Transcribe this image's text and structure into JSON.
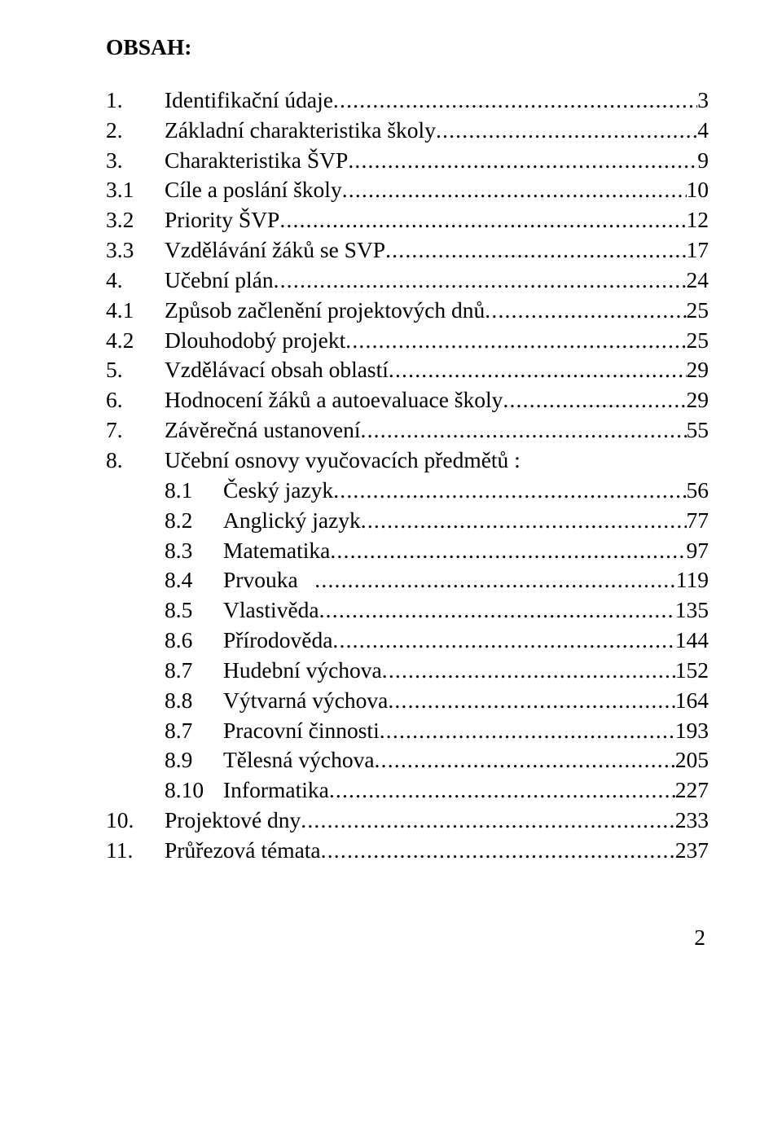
{
  "title": "OBSAH:",
  "footer_page": "2",
  "entries": [
    {
      "num": "1.",
      "label": "Identifikační údaje",
      "page": "3",
      "indent": 0,
      "numClass": "num-top"
    },
    {
      "num": "2.",
      "label": "Základní charakteristika školy",
      "page": "4",
      "indent": 0,
      "numClass": "num-top"
    },
    {
      "num": "3.",
      "label": "Charakteristika ŠVP",
      "page": "9",
      "indent": 0,
      "numClass": "num-top"
    },
    {
      "num": "3.1",
      "label": "Cíle a poslání školy",
      "page": "10",
      "indent": 0,
      "numClass": "num-sub"
    },
    {
      "num": "3.2",
      "label": "Priority ŠVP",
      "page": "12",
      "indent": 0,
      "numClass": "num-sub"
    },
    {
      "num": "3.3",
      "label": "Vzdělávání žáků se SVP",
      "page": "17",
      "indent": 0,
      "numClass": "num-sub"
    },
    {
      "num": "4.",
      "label": "Učební plán",
      "page": "24",
      "indent": 0,
      "numClass": "num-top"
    },
    {
      "num": "4.1",
      "label": "Způsob začlenění projektových dnů",
      "page": "25",
      "indent": 0,
      "numClass": "num-sub"
    },
    {
      "num": "4.2",
      "label": "Dlouhodobý projekt",
      "page": "25",
      "indent": 0,
      "numClass": "num-sub"
    },
    {
      "num": "5.",
      "label": "Vzdělávací obsah oblastí",
      "page": "29",
      "indent": 0,
      "numClass": "num-top"
    },
    {
      "num": "6.",
      "label": "Hodnocení žáků a autoevaluace školy",
      "page": "29",
      "indent": 0,
      "numClass": "num-top"
    },
    {
      "num": "7.",
      "label": "Závěrečná ustanovení",
      "page": "55",
      "indent": 0,
      "numClass": "num-top"
    },
    {
      "num": "8.",
      "label": "Učební osnovy vyučovacích předmětů :",
      "page": "",
      "indent": 0,
      "numClass": "num-top",
      "noleader": true
    },
    {
      "num": "8.1",
      "label": "Český jazyk",
      "page": "56",
      "indent": 1,
      "numClass": "num-sub"
    },
    {
      "num": "8.2",
      "label": "Anglický jazyk",
      "page": "77",
      "indent": 1,
      "numClass": "num-sub"
    },
    {
      "num": "8.3",
      "label": "Matematika",
      "page": "97",
      "indent": 1,
      "numClass": "num-sub"
    },
    {
      "num": "8.4",
      "label": "Prvouka   ",
      "page": "119",
      "indent": 1,
      "numClass": "num-sub"
    },
    {
      "num": "8.5",
      "label": "Vlastivěda",
      "page": "135",
      "indent": 1,
      "numClass": "num-sub"
    },
    {
      "num": "8.6",
      "label": "Přírodověda",
      "page": "144",
      "indent": 1,
      "numClass": "num-sub"
    },
    {
      "num": "8.7",
      "label": "Hudební výchova",
      "page": "152",
      "indent": 1,
      "numClass": "num-sub"
    },
    {
      "num": "8.8",
      "label": "Výtvarná výchova",
      "page": "164",
      "indent": 1,
      "numClass": "num-sub"
    },
    {
      "num": "8.7",
      "label": "Pracovní činnosti",
      "page": "193",
      "indent": 1,
      "numClass": "num-sub"
    },
    {
      "num": "8.9",
      "label": "Tělesná výchova",
      "page": "205",
      "indent": 1,
      "numClass": "num-sub"
    },
    {
      "num": "8.10",
      "label": "Informatika",
      "page": "227",
      "indent": 1,
      "numClass": "num-sub"
    },
    {
      "num": "10.",
      "label": "Projektové dny",
      "page": "233",
      "indent": 0,
      "numClass": "num-top"
    },
    {
      "num": "11.",
      "label": "Průřezová témata",
      "page": "237",
      "indent": 0,
      "numClass": "num-top"
    }
  ]
}
